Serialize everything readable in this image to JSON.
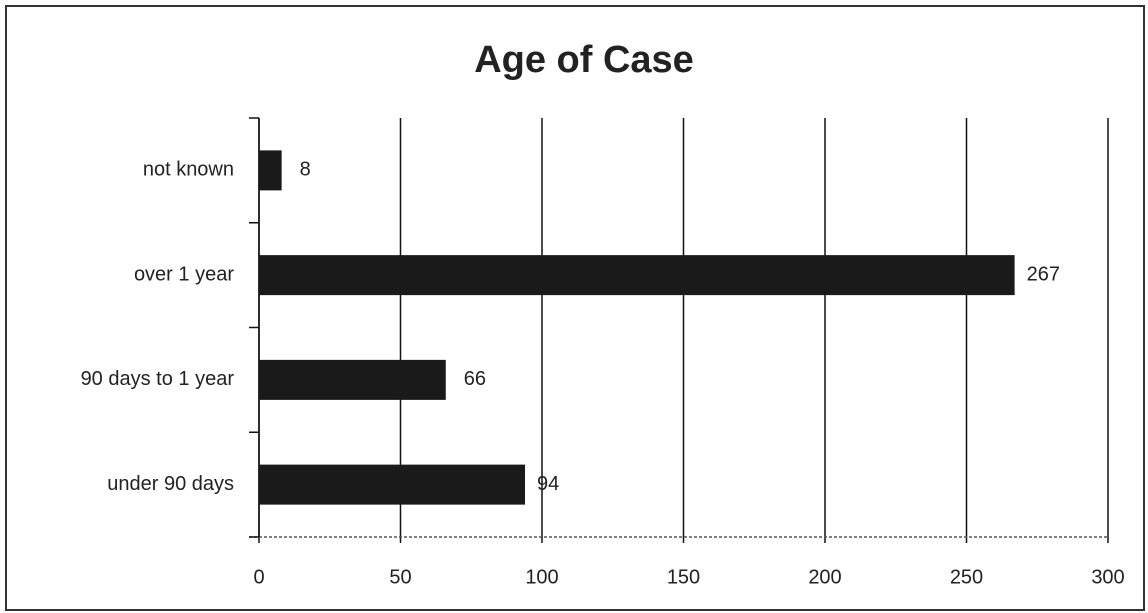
{
  "chart_data": {
    "type": "bar",
    "orientation": "horizontal",
    "title": "Age of Case",
    "categories": [
      "under 90 days",
      "90 days to 1 year",
      "over 1 year",
      "not known"
    ],
    "values": [
      94,
      66,
      267,
      8
    ],
    "color": "#1a1a1a",
    "xlim": [
      0,
      300
    ],
    "xticks": [
      0,
      50,
      100,
      150,
      200,
      250,
      300
    ],
    "grid": true
  }
}
